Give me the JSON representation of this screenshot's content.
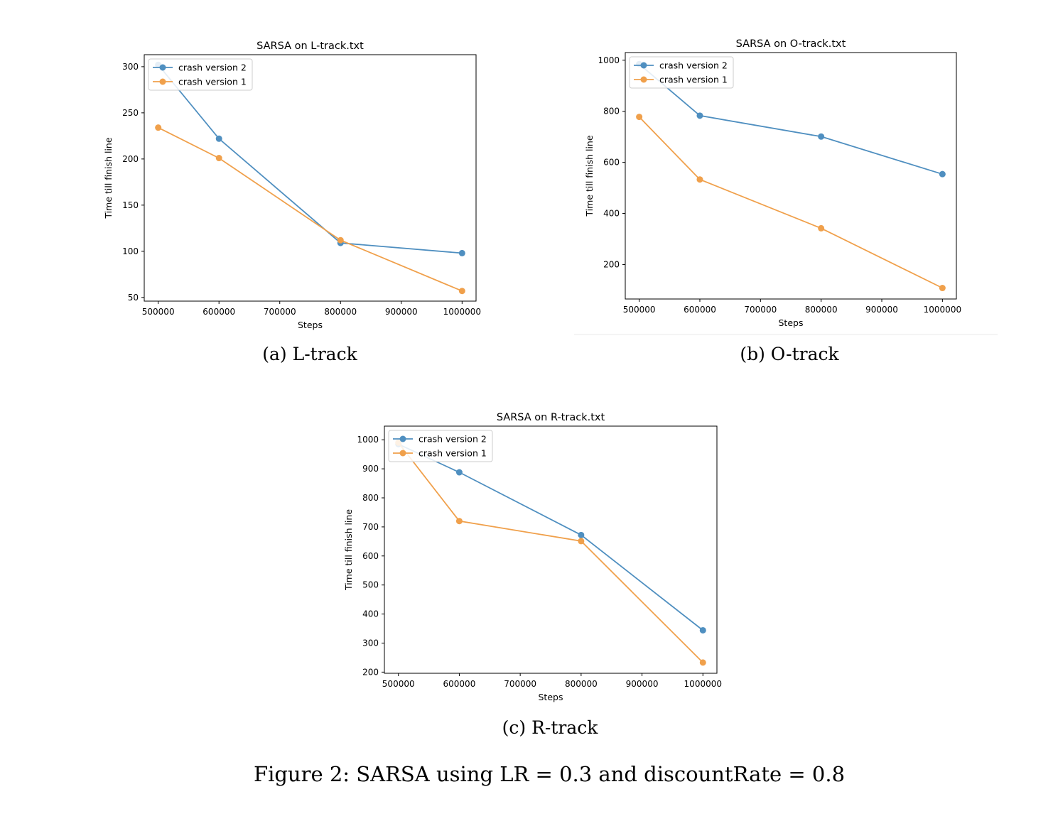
{
  "chart_data": [
    {
      "type": "line",
      "title": "SARSA on L-track.txt",
      "xlabel": "Steps",
      "ylabel": "Time till finish line",
      "x": [
        500000,
        600000,
        800000,
        1000000
      ],
      "xticks": [
        500000,
        600000,
        700000,
        800000,
        900000,
        1000000
      ],
      "xtick_labels": [
        "500000",
        "600000",
        "700000",
        "800000",
        "900000",
        "1000000"
      ],
      "yticks": [
        50,
        100,
        150,
        200,
        250,
        300
      ],
      "ytick_labels": [
        "50",
        "100",
        "150",
        "200",
        "250",
        "300"
      ],
      "xlim": [
        477000,
        1023000
      ],
      "ylim": [
        46,
        313
      ],
      "legend": "top-left",
      "grid": false,
      "series": [
        {
          "name": "crash version 2",
          "color": "#4f8fc0",
          "values": [
            302,
            222,
            109,
            98
          ]
        },
        {
          "name": "crash version 1",
          "color": "#f0a04b",
          "values": [
            234,
            201,
            112,
            57
          ]
        }
      ],
      "caption": "(a) L-track"
    },
    {
      "type": "line",
      "title": "SARSA on O-track.txt",
      "xlabel": "Steps",
      "ylabel": "Time till finish line",
      "x": [
        500000,
        600000,
        800000,
        1000000
      ],
      "xticks": [
        500000,
        600000,
        700000,
        800000,
        900000,
        1000000
      ],
      "xtick_labels": [
        "500000",
        "600000",
        "700000",
        "800000",
        "900000",
        "1000000"
      ],
      "yticks": [
        200,
        400,
        600,
        800,
        1000
      ],
      "ytick_labels": [
        "200",
        "400",
        "600",
        "800",
        "1000"
      ],
      "xlim": [
        477000,
        1023000
      ],
      "ylim": [
        65,
        1030
      ],
      "legend": "top-left",
      "grid": false,
      "series": [
        {
          "name": "crash version 2",
          "color": "#4f8fc0",
          "values": [
            985,
            783,
            701,
            554
          ]
        },
        {
          "name": "crash version 1",
          "color": "#f0a04b",
          "values": [
            778,
            533,
            342,
            108
          ]
        }
      ],
      "caption": "(b) O-track"
    },
    {
      "type": "line",
      "title": "SARSA on R-track.txt",
      "xlabel": "Steps",
      "ylabel": "Time till finish line",
      "x": [
        500000,
        600000,
        800000,
        1000000
      ],
      "xticks": [
        500000,
        600000,
        700000,
        800000,
        900000,
        1000000
      ],
      "xtick_labels": [
        "500000",
        "600000",
        "700000",
        "800000",
        "900000",
        "1000000"
      ],
      "yticks": [
        200,
        300,
        400,
        500,
        600,
        700,
        800,
        900,
        1000
      ],
      "ytick_labels": [
        "200",
        "300",
        "400",
        "500",
        "600",
        "700",
        "800",
        "900",
        "1000"
      ],
      "xlim": [
        477000,
        1023000
      ],
      "ylim": [
        196,
        1047
      ],
      "legend": "top-left",
      "grid": false,
      "series": [
        {
          "name": "crash version 2",
          "color": "#4f8fc0",
          "values": [
            985,
            888,
            672,
            344
          ]
        },
        {
          "name": "crash version 1",
          "color": "#f0a04b",
          "values": [
            990,
            720,
            651,
            233
          ]
        }
      ],
      "caption": "(c) R-track"
    }
  ],
  "figure_caption": "Figure 2: SARSA using LR = 0.3 and discountRate = 0.8"
}
